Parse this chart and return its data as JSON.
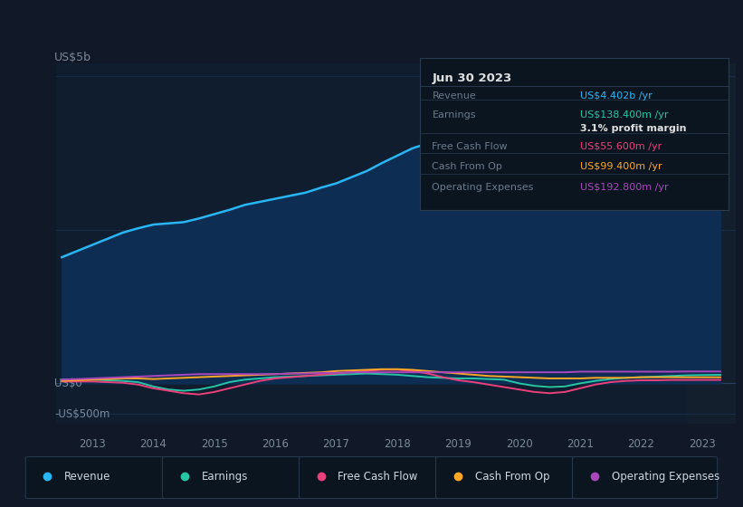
{
  "background_color": "#111827",
  "plot_bg_color": "#0f1d2e",
  "title_box_bg": "#0a1520",
  "title_box_border": "#2a3a50",
  "title_box_date": "Jun 30 2023",
  "title_box_rows": [
    {
      "label": "Revenue",
      "value": "US$4.402b /yr",
      "label_color": "#6b7a8d",
      "value_color": "#29b6f6"
    },
    {
      "label": "Earnings",
      "value": "US$138.400m /yr",
      "label_color": "#6b7a8d",
      "value_color": "#26c6a6"
    },
    {
      "label": "",
      "value": "3.1% profit margin",
      "label_color": "#6b7a8d",
      "value_color": "#e0e0e0"
    },
    {
      "label": "Free Cash Flow",
      "value": "US$55.600m /yr",
      "label_color": "#6b7a8d",
      "value_color": "#ec407a"
    },
    {
      "label": "Cash From Op",
      "value": "US$99.400m /yr",
      "label_color": "#6b7a8d",
      "value_color": "#ffa726"
    },
    {
      "label": "Operating Expenses",
      "value": "US$192.800m /yr",
      "label_color": "#6b7a8d",
      "value_color": "#ab47bc"
    }
  ],
  "years": [
    2012.5,
    2012.75,
    2013.0,
    2013.25,
    2013.5,
    2013.75,
    2014.0,
    2014.25,
    2014.5,
    2014.75,
    2015.0,
    2015.25,
    2015.5,
    2015.75,
    2016.0,
    2016.25,
    2016.5,
    2016.75,
    2017.0,
    2017.25,
    2017.5,
    2017.75,
    2018.0,
    2018.25,
    2018.5,
    2018.75,
    2019.0,
    2019.25,
    2019.5,
    2019.75,
    2020.0,
    2020.25,
    2020.5,
    2020.75,
    2021.0,
    2021.25,
    2021.5,
    2021.75,
    2022.0,
    2022.25,
    2022.5,
    2022.75,
    2023.0,
    2023.3
  ],
  "revenue": [
    2.05,
    2.15,
    2.25,
    2.35,
    2.45,
    2.52,
    2.58,
    2.6,
    2.62,
    2.68,
    2.75,
    2.82,
    2.9,
    2.95,
    3.0,
    3.05,
    3.1,
    3.18,
    3.25,
    3.35,
    3.45,
    3.58,
    3.7,
    3.82,
    3.9,
    4.05,
    4.2,
    4.32,
    4.38,
    4.35,
    4.25,
    4.1,
    3.95,
    3.85,
    3.8,
    3.82,
    3.9,
    3.98,
    4.05,
    4.12,
    4.18,
    4.28,
    4.38,
    4.4
  ],
  "earnings": [
    0.06,
    0.06,
    0.06,
    0.05,
    0.04,
    0.02,
    -0.05,
    -0.1,
    -0.12,
    -0.1,
    -0.05,
    0.02,
    0.06,
    0.08,
    0.1,
    0.11,
    0.12,
    0.13,
    0.14,
    0.15,
    0.16,
    0.15,
    0.14,
    0.12,
    0.1,
    0.09,
    0.08,
    0.08,
    0.07,
    0.06,
    0.0,
    -0.04,
    -0.06,
    -0.05,
    0.0,
    0.04,
    0.07,
    0.09,
    0.1,
    0.11,
    0.12,
    0.13,
    0.135,
    0.138
  ],
  "free_cash_flow": [
    0.03,
    0.03,
    0.03,
    0.02,
    0.01,
    -0.02,
    -0.08,
    -0.12,
    -0.16,
    -0.18,
    -0.14,
    -0.08,
    -0.02,
    0.04,
    0.08,
    0.1,
    0.12,
    0.14,
    0.16,
    0.18,
    0.2,
    0.22,
    0.22,
    0.2,
    0.16,
    0.1,
    0.05,
    0.02,
    -0.02,
    -0.06,
    -0.1,
    -0.14,
    -0.16,
    -0.14,
    -0.08,
    -0.02,
    0.02,
    0.04,
    0.05,
    0.05,
    0.055,
    0.055,
    0.056,
    0.056
  ],
  "cash_from_op": [
    0.04,
    0.05,
    0.06,
    0.07,
    0.08,
    0.08,
    0.07,
    0.08,
    0.09,
    0.1,
    0.11,
    0.12,
    0.13,
    0.14,
    0.15,
    0.16,
    0.17,
    0.18,
    0.2,
    0.21,
    0.22,
    0.23,
    0.23,
    0.22,
    0.2,
    0.18,
    0.16,
    0.14,
    0.12,
    0.11,
    0.1,
    0.09,
    0.08,
    0.08,
    0.08,
    0.09,
    0.09,
    0.09,
    0.1,
    0.1,
    0.1,
    0.099,
    0.099,
    0.099
  ],
  "op_expenses": [
    0.06,
    0.07,
    0.08,
    0.09,
    0.1,
    0.11,
    0.12,
    0.13,
    0.14,
    0.15,
    0.15,
    0.15,
    0.15,
    0.15,
    0.15,
    0.16,
    0.16,
    0.17,
    0.17,
    0.18,
    0.18,
    0.18,
    0.18,
    0.18,
    0.18,
    0.18,
    0.18,
    0.18,
    0.18,
    0.18,
    0.18,
    0.18,
    0.18,
    0.18,
    0.19,
    0.19,
    0.19,
    0.19,
    0.19,
    0.19,
    0.19,
    0.193,
    0.193,
    0.193
  ],
  "revenue_color": "#29b6f6",
  "earnings_color": "#26c6a6",
  "free_cash_flow_color": "#ec407a",
  "cash_from_op_color": "#ffa726",
  "op_expenses_color": "#ab47bc",
  "revenue_fill_color": "#0d2d52",
  "ylabel_top": "US$5b",
  "ylabel_zero": "US$0",
  "ylabel_neg": "-US$500m",
  "xlim": [
    2012.4,
    2023.55
  ],
  "ylim": [
    -0.65,
    5.2
  ],
  "grid_color": "#1a3050",
  "zero_line_color": "#2a4060",
  "text_color": "#7a8a9a",
  "legend_labels": [
    "Revenue",
    "Earnings",
    "Free Cash Flow",
    "Cash From Op",
    "Operating Expenses"
  ],
  "legend_colors": [
    "#29b6f6",
    "#26c6a6",
    "#ec407a",
    "#ffa726",
    "#ab47bc"
  ],
  "xtick_years": [
    2013,
    2014,
    2015,
    2016,
    2017,
    2018,
    2019,
    2020,
    2021,
    2022,
    2023
  ]
}
